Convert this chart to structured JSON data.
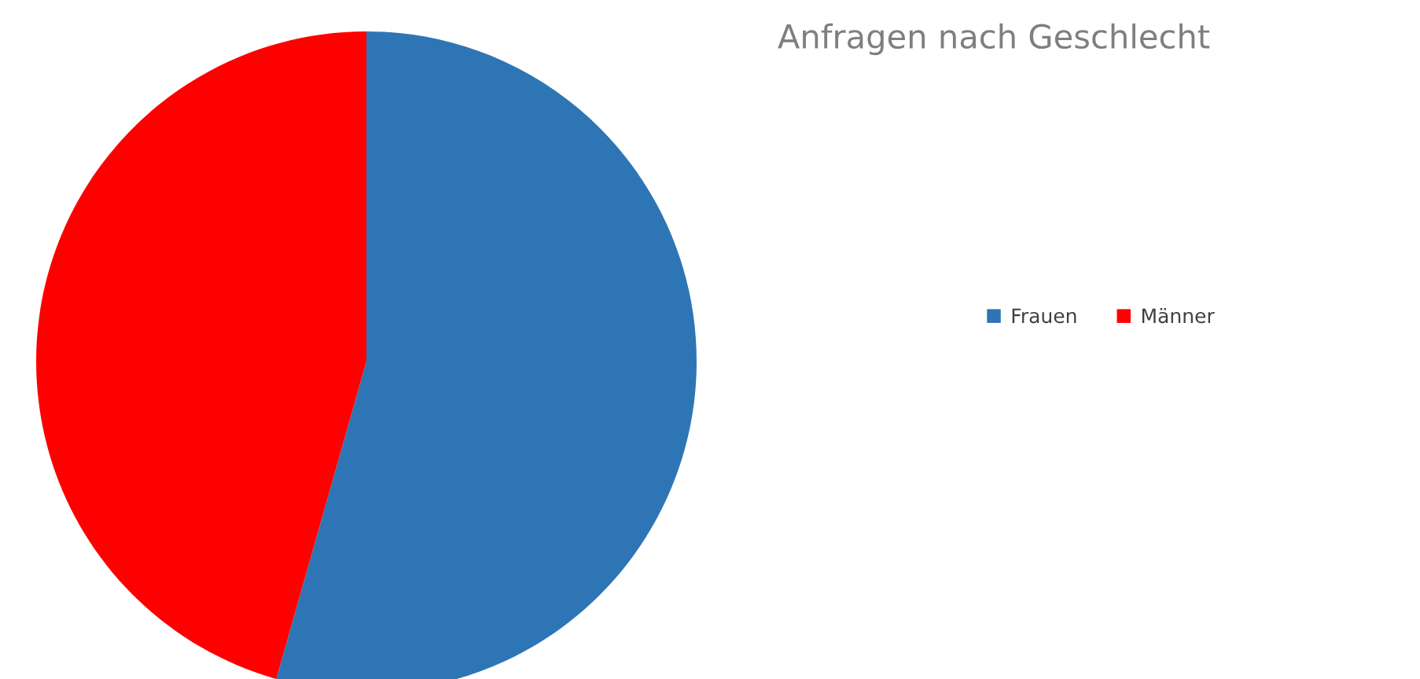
{
  "chart_data": {
    "type": "pie",
    "title": "Anfragen nach Geschlecht",
    "categories": [
      "Frauen",
      "Männer"
    ],
    "values": [
      54.4,
      45.6
    ],
    "colors": [
      "#2e75b6",
      "#ff0000"
    ],
    "legend": "right"
  }
}
